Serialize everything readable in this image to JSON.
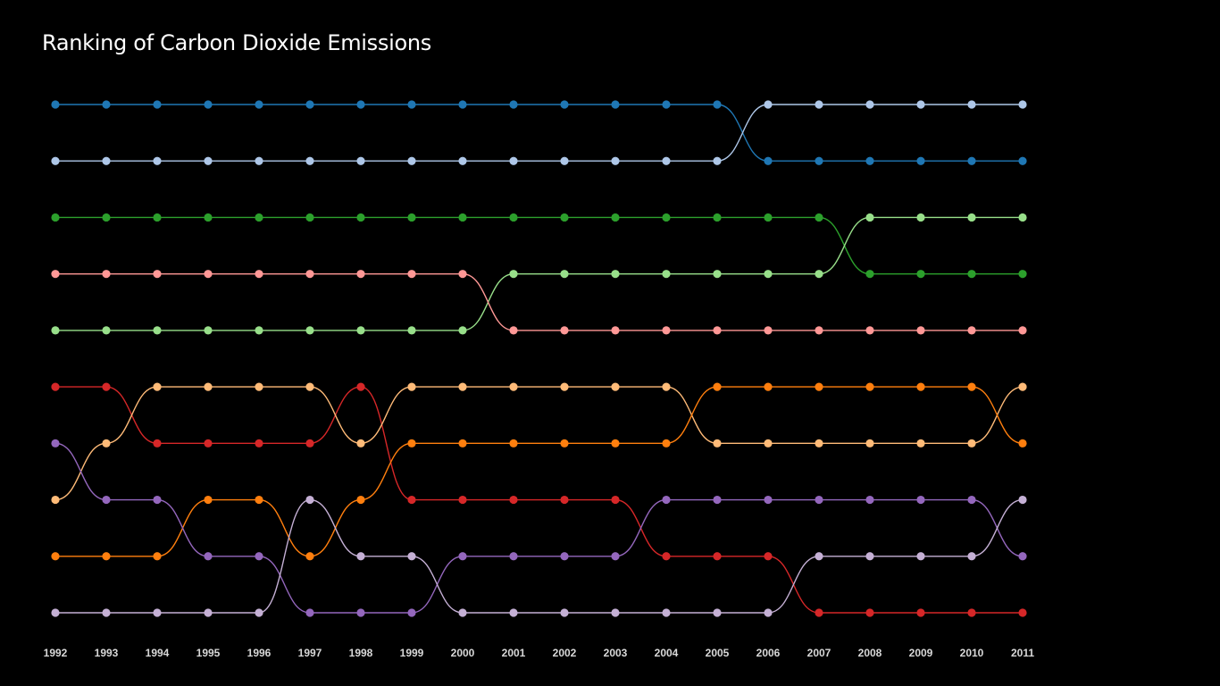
{
  "chart_data": {
    "type": "line",
    "subtype": "bump",
    "title": "Ranking of Carbon Dioxide Emissions",
    "xlabel": "",
    "ylabel": "",
    "x": [
      "1992",
      "1993",
      "1994",
      "1995",
      "1996",
      "1997",
      "1998",
      "1999",
      "2000",
      "2001",
      "2002",
      "2003",
      "2004",
      "2005",
      "2006",
      "2007",
      "2008",
      "2009",
      "2010",
      "2011"
    ],
    "ylim": [
      1,
      10
    ],
    "y_reversed": true,
    "grid": false,
    "legend": "none",
    "background": "#000000",
    "series": [
      {
        "color": "#1f77b4",
        "values": [
          1,
          1,
          1,
          1,
          1,
          1,
          1,
          1,
          1,
          1,
          1,
          1,
          1,
          1,
          2,
          2,
          2,
          2,
          2,
          2
        ]
      },
      {
        "color": "#aec7e8",
        "values": [
          2,
          2,
          2,
          2,
          2,
          2,
          2,
          2,
          2,
          2,
          2,
          2,
          2,
          2,
          1,
          1,
          1,
          1,
          1,
          1
        ]
      },
      {
        "color": "#2ca02c",
        "values": [
          3,
          3,
          3,
          3,
          3,
          3,
          3,
          3,
          3,
          3,
          3,
          3,
          3,
          3,
          3,
          3,
          4,
          4,
          4,
          4
        ]
      },
      {
        "color": "#98df8a",
        "values": [
          5,
          5,
          5,
          5,
          5,
          5,
          5,
          5,
          5,
          4,
          4,
          4,
          4,
          4,
          4,
          4,
          3,
          3,
          3,
          3
        ]
      },
      {
        "color": "#ff9896",
        "values": [
          4,
          4,
          4,
          4,
          4,
          4,
          4,
          4,
          4,
          5,
          5,
          5,
          5,
          5,
          5,
          5,
          5,
          5,
          5,
          5
        ]
      },
      {
        "color": "#d62728",
        "values": [
          6,
          6,
          7,
          7,
          7,
          7,
          6,
          8,
          8,
          8,
          8,
          8,
          9,
          9,
          9,
          10,
          10,
          10,
          10,
          10
        ]
      },
      {
        "color": "#ffbb78",
        "values": [
          8,
          7,
          6,
          6,
          6,
          6,
          7,
          6,
          6,
          6,
          6,
          6,
          6,
          7,
          7,
          7,
          7,
          7,
          7,
          6
        ]
      },
      {
        "color": "#ff7f0e",
        "values": [
          9,
          9,
          9,
          8,
          8,
          9,
          8,
          7,
          7,
          7,
          7,
          7,
          7,
          6,
          6,
          6,
          6,
          6,
          6,
          7
        ]
      },
      {
        "color": "#9467bd",
        "values": [
          7,
          8,
          8,
          9,
          9,
          10,
          10,
          10,
          9,
          9,
          9,
          9,
          8,
          8,
          8,
          8,
          8,
          8,
          8,
          9
        ]
      },
      {
        "color": "#c5b0d5",
        "values": [
          10,
          10,
          10,
          10,
          10,
          8,
          9,
          9,
          10,
          10,
          10,
          10,
          10,
          10,
          10,
          9,
          9,
          9,
          9,
          8
        ]
      }
    ]
  }
}
